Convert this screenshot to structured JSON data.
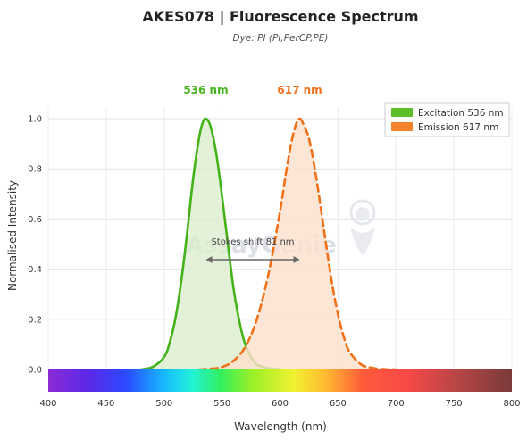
{
  "chart_data": {
    "type": "area",
    "title": "AKES078  |  Fluorescence Spectrum",
    "subtitle": "Dye: PI (PI,PerCP,PE)",
    "xlabel": "Wavelength (nm)",
    "ylabel": "Normalised Intensity",
    "xlim": [
      400,
      800
    ],
    "ylim": [
      0,
      1.08
    ],
    "x_ticks": [
      "400",
      "450",
      "500",
      "550",
      "600",
      "650",
      "700",
      "750",
      "800"
    ],
    "y_ticks": [
      "0.0",
      "0.2",
      "0.4",
      "0.6",
      "0.8",
      "1.0"
    ],
    "grid": true,
    "legend_position": "top-right",
    "series": [
      {
        "name": "Excitation  536 nm",
        "peak_label": "536 nm",
        "style": "solid",
        "color": "#44b31a",
        "fill": "#dbeecd",
        "x": [
          480,
          490,
          500,
          505,
          510,
          515,
          520,
          525,
          530,
          533,
          536,
          540,
          545,
          550,
          555,
          560,
          565,
          570,
          575,
          580,
          590,
          600
        ],
        "values": [
          0.0,
          0.01,
          0.05,
          0.11,
          0.21,
          0.36,
          0.55,
          0.76,
          0.92,
          0.98,
          1.0,
          0.97,
          0.86,
          0.69,
          0.5,
          0.32,
          0.19,
          0.1,
          0.05,
          0.02,
          0.005,
          0.0
        ]
      },
      {
        "name": "Emission  617 nm",
        "peak_label": "617 nm",
        "style": "dashed",
        "color": "#f07018",
        "fill": "#fde0cc",
        "x": [
          530,
          540,
          550,
          560,
          570,
          580,
          590,
          600,
          605,
          610,
          614,
          617,
          620,
          625,
          630,
          635,
          640,
          645,
          650,
          655,
          660,
          670,
          680,
          690,
          700
        ],
        "values": [
          0.0,
          0.003,
          0.01,
          0.035,
          0.09,
          0.2,
          0.38,
          0.63,
          0.78,
          0.91,
          0.98,
          1.0,
          0.98,
          0.92,
          0.8,
          0.65,
          0.49,
          0.34,
          0.22,
          0.13,
          0.07,
          0.02,
          0.006,
          0.001,
          0.0
        ]
      }
    ],
    "annotation": {
      "text": "Stokes shift  81 nm",
      "from": 536,
      "to": 617,
      "y": 0.44
    },
    "watermark": "AssayGenie"
  }
}
